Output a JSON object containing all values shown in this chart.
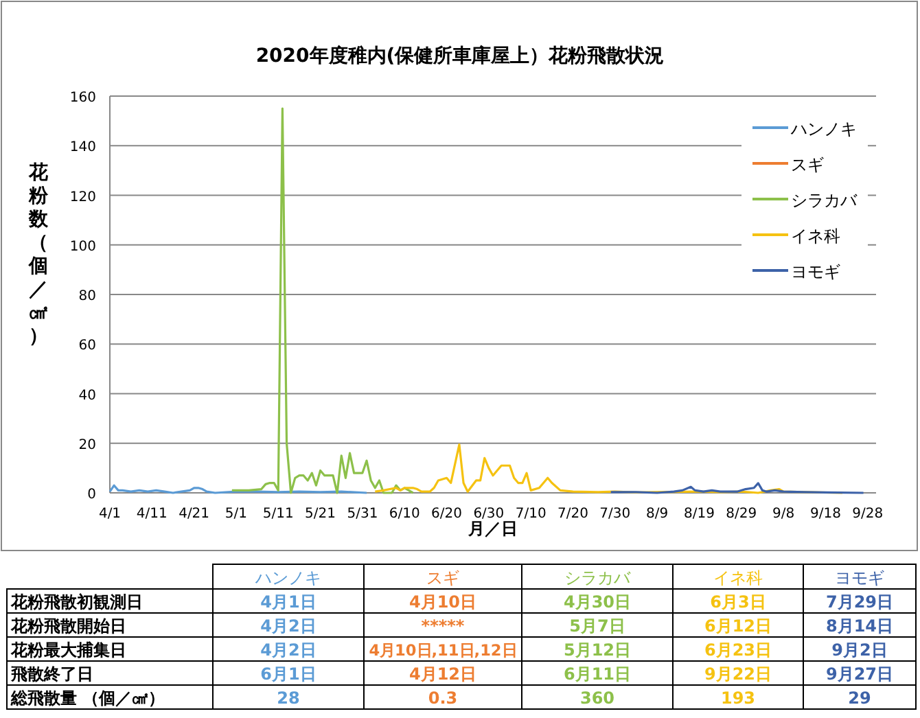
{
  "chart_data": [
    {
      "type": "line",
      "title": "2020年度稚内(保健所車庫屋上）花粉飛散状況",
      "xlabel": "月／日",
      "ylabel": "花粉数（個／㎠）",
      "xlim": [
        "2020-04-01",
        "2020-09-30"
      ],
      "xticks": [
        {
          "value": "2020-04-01",
          "label": "4/1"
        },
        {
          "value": "2020-04-11",
          "label": "4/11"
        },
        {
          "value": "2020-04-21",
          "label": "4/21"
        },
        {
          "value": "2020-05-01",
          "label": "5/1"
        },
        {
          "value": "2020-05-11",
          "label": "5/11"
        },
        {
          "value": "2020-05-21",
          "label": "5/21"
        },
        {
          "value": "2020-05-31",
          "label": "5/31"
        },
        {
          "value": "2020-06-10",
          "label": "6/10"
        },
        {
          "value": "2020-06-20",
          "label": "6/20"
        },
        {
          "value": "2020-06-30",
          "label": "6/30"
        },
        {
          "value": "2020-07-10",
          "label": "7/10"
        },
        {
          "value": "2020-07-20",
          "label": "7/20"
        },
        {
          "value": "2020-07-30",
          "label": "7/30"
        },
        {
          "value": "2020-08-09",
          "label": "8/9"
        },
        {
          "value": "2020-08-19",
          "label": "8/19"
        },
        {
          "value": "2020-08-29",
          "label": "8/29"
        },
        {
          "value": "2020-09-08",
          "label": "9/8"
        },
        {
          "value": "2020-09-18",
          "label": "9/18"
        },
        {
          "value": "2020-09-28",
          "label": "9/28"
        }
      ],
      "ylim": [
        0,
        160
      ],
      "yticks": [
        0,
        20,
        40,
        60,
        80,
        100,
        120,
        140,
        160
      ],
      "grid": "y",
      "legend": "top right",
      "marker": "none",
      "line_style": "solid",
      "series": [
        {
          "name": "ハンノキ",
          "color": "#5b9bd5",
          "x": [
            "2020-04-01",
            "2020-04-02",
            "2020-04-03",
            "2020-04-04",
            "2020-04-06",
            "2020-04-08",
            "2020-04-10",
            "2020-04-12",
            "2020-04-14",
            "2020-04-16",
            "2020-04-18",
            "2020-04-20",
            "2020-04-21",
            "2020-04-22",
            "2020-04-23",
            "2020-04-24",
            "2020-04-26",
            "2020-05-01",
            "2020-05-06",
            "2020-05-11",
            "2020-05-16",
            "2020-05-21",
            "2020-05-26",
            "2020-06-01"
          ],
          "values": [
            0.5,
            3,
            1,
            1,
            0.5,
            1,
            0.5,
            1,
            0.5,
            0,
            0.5,
            1,
            2,
            2,
            1.5,
            0.5,
            0,
            0.5,
            0.5,
            0.3,
            0.5,
            0.3,
            0.5,
            0
          ]
        },
        {
          "name": "スギ",
          "color": "#ed7d31"
        },
        {
          "name": "シラカバ",
          "color": "#8dc04a",
          "x": [
            "2020-04-30",
            "2020-05-04",
            "2020-05-07",
            "2020-05-08",
            "2020-05-09",
            "2020-05-10",
            "2020-05-11",
            "2020-05-12",
            "2020-05-13",
            "2020-05-14",
            "2020-05-15",
            "2020-05-16",
            "2020-05-17",
            "2020-05-18",
            "2020-05-19",
            "2020-05-20",
            "2020-05-21",
            "2020-05-22",
            "2020-05-23",
            "2020-05-24",
            "2020-05-25",
            "2020-05-26",
            "2020-05-27",
            "2020-05-28",
            "2020-05-29",
            "2020-05-30",
            "2020-05-31",
            "2020-06-01",
            "2020-06-02",
            "2020-06-03",
            "2020-06-04",
            "2020-06-05",
            "2020-06-07",
            "2020-06-08",
            "2020-06-09",
            "2020-06-10",
            "2020-06-11",
            "2020-06-12"
          ],
          "values": [
            1,
            1,
            1.5,
            3.5,
            4,
            4,
            1,
            155,
            20,
            0,
            6,
            7,
            7,
            5,
            8,
            3,
            9,
            7,
            7,
            7,
            0,
            15,
            6,
            16,
            8,
            8,
            8,
            13,
            5,
            2,
            5,
            0,
            0,
            3,
            1,
            2,
            1,
            0
          ]
        },
        {
          "name": "イネ科",
          "color": "#f5c211",
          "x": [
            "2020-06-03",
            "2020-06-05",
            "2020-06-08",
            "2020-06-09",
            "2020-06-10",
            "2020-06-11",
            "2020-06-12",
            "2020-06-13",
            "2020-06-14",
            "2020-06-16",
            "2020-06-17",
            "2020-06-18",
            "2020-06-20",
            "2020-06-21",
            "2020-06-23",
            "2020-06-24",
            "2020-06-25",
            "2020-06-27",
            "2020-06-28",
            "2020-06-29",
            "2020-06-30",
            "2020-07-01",
            "2020-07-03",
            "2020-07-05",
            "2020-07-06",
            "2020-07-07",
            "2020-07-08",
            "2020-07-09",
            "2020-07-10",
            "2020-07-12",
            "2020-07-14",
            "2020-07-15",
            "2020-07-17",
            "2020-07-20",
            "2020-07-26",
            "2020-07-30",
            "2020-08-04",
            "2020-08-09",
            "2020-08-19",
            "2020-08-24",
            "2020-08-29",
            "2020-09-02",
            "2020-09-05",
            "2020-09-07",
            "2020-09-08",
            "2020-09-13",
            "2020-09-22"
          ],
          "values": [
            0.5,
            1,
            2,
            1,
            2,
            2,
            2,
            1.5,
            0.5,
            0.5,
            2,
            5,
            6,
            4,
            19.5,
            4,
            0.5,
            5,
            5,
            14,
            10,
            7,
            11,
            11,
            6,
            4,
            4,
            8,
            1,
            2,
            6,
            4,
            1,
            0.5,
            0.3,
            0.5,
            0.2,
            0.3,
            0.5,
            0.3,
            0.5,
            0,
            1,
            1.5,
            0.5,
            0.3,
            0
          ]
        },
        {
          "name": "ヨモギ",
          "color": "#3d62a8",
          "x": [
            "2020-07-29",
            "2020-08-04",
            "2020-08-09",
            "2020-08-13",
            "2020-08-15",
            "2020-08-17",
            "2020-08-18",
            "2020-08-20",
            "2020-08-22",
            "2020-08-24",
            "2020-08-28",
            "2020-08-30",
            "2020-09-01",
            "2020-09-02",
            "2020-09-03",
            "2020-09-04",
            "2020-09-06",
            "2020-09-08",
            "2020-09-13",
            "2020-09-18",
            "2020-09-27"
          ],
          "values": [
            0.3,
            0.3,
            0,
            0.5,
            1,
            2.4,
            1,
            0.5,
            1,
            0.5,
            0.5,
            1.5,
            2,
            3.9,
            1,
            0.5,
            1,
            0.5,
            0.3,
            0.2,
            0
          ]
        }
      ]
    },
    {
      "type": "other",
      "categories": [
        "ハンノキ",
        "スギ",
        "シラカバ",
        "イネ科",
        "ヨモギ"
      ],
      "y_categories": [
        "花粉飛散初観測日",
        "花粉飛散開始日",
        "花粉最大捕集日",
        "飛散終了日",
        "総飛散量 （個／㎠）"
      ],
      "cell_labels": [
        [
          "4月1日",
          "4月10日",
          "4月30日",
          "6月3日",
          "7月29日"
        ],
        [
          "4月2日",
          "*****",
          "5月7日",
          "6月12日",
          "8月14日"
        ],
        [
          "4月2日",
          "4月10日,11日,12日",
          "5月12日",
          "6月23日",
          "9月2日"
        ],
        [
          "6月1日",
          "4月12日",
          "6月11日",
          "9月22日",
          "9月27日"
        ],
        [
          "28",
          "0.3",
          "360",
          "193",
          "29"
        ]
      ]
    }
  ]
}
